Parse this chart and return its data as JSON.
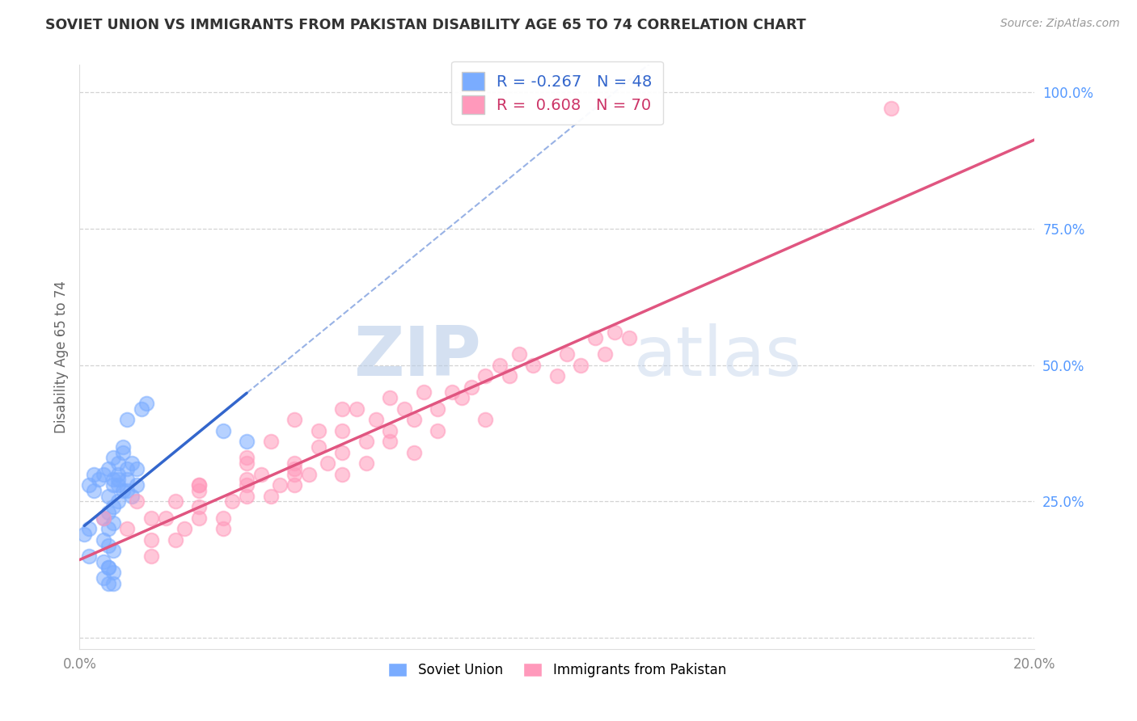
{
  "title": "SOVIET UNION VS IMMIGRANTS FROM PAKISTAN DISABILITY AGE 65 TO 74 CORRELATION CHART",
  "source": "Source: ZipAtlas.com",
  "ylabel": "Disability Age 65 to 74",
  "xlim": [
    0.0,
    0.2
  ],
  "ylim": [
    -0.02,
    1.05
  ],
  "yticks": [
    0.0,
    0.25,
    0.5,
    0.75,
    1.0
  ],
  "yticklabels": [
    "",
    "25.0%",
    "50.0%",
    "75.0%",
    "100.0%"
  ],
  "soviet_color": "#7aacff",
  "pakistan_color": "#ff99bb",
  "soviet_line_color": "#3366cc",
  "pakistan_line_color": "#e05580",
  "soviet_R": -0.267,
  "soviet_N": 48,
  "pakistan_R": 0.608,
  "pakistan_N": 70,
  "grid_color": "#c8c8c8",
  "background_color": "#ffffff",
  "axis_label_color": "#5599ff",
  "soviet_x": [
    0.005,
    0.007,
    0.008,
    0.006,
    0.01,
    0.012,
    0.009,
    0.011,
    0.008,
    0.01,
    0.006,
    0.008,
    0.007,
    0.003,
    0.004,
    0.002,
    0.003,
    0.007,
    0.009,
    0.011,
    0.01,
    0.008,
    0.007,
    0.006,
    0.005,
    0.007,
    0.002,
    0.006,
    0.001,
    0.005,
    0.006,
    0.007,
    0.002,
    0.005,
    0.006,
    0.007,
    0.005,
    0.006,
    0.012,
    0.008,
    0.009,
    0.01,
    0.013,
    0.014,
    0.006,
    0.007,
    0.03,
    0.035
  ],
  "soviet_y": [
    0.3,
    0.33,
    0.32,
    0.31,
    0.29,
    0.28,
    0.27,
    0.26,
    0.28,
    0.27,
    0.26,
    0.3,
    0.29,
    0.3,
    0.29,
    0.28,
    0.27,
    0.28,
    0.34,
    0.32,
    0.31,
    0.25,
    0.24,
    0.23,
    0.22,
    0.21,
    0.2,
    0.2,
    0.19,
    0.18,
    0.17,
    0.16,
    0.15,
    0.14,
    0.13,
    0.12,
    0.11,
    0.1,
    0.31,
    0.29,
    0.35,
    0.4,
    0.42,
    0.43,
    0.13,
    0.1,
    0.38,
    0.36
  ],
  "pakistan_x": [
    0.005,
    0.01,
    0.012,
    0.015,
    0.018,
    0.02,
    0.022,
    0.025,
    0.025,
    0.03,
    0.032,
    0.035,
    0.038,
    0.04,
    0.042,
    0.045,
    0.048,
    0.05,
    0.052,
    0.055,
    0.058,
    0.06,
    0.062,
    0.065,
    0.068,
    0.07,
    0.072,
    0.075,
    0.078,
    0.08,
    0.082,
    0.085,
    0.088,
    0.09,
    0.092,
    0.095,
    0.1,
    0.102,
    0.105,
    0.108,
    0.11,
    0.112,
    0.115,
    0.025,
    0.035,
    0.045,
    0.055,
    0.065,
    0.075,
    0.085,
    0.015,
    0.02,
    0.03,
    0.015,
    0.025,
    0.035,
    0.045,
    0.055,
    0.06,
    0.07,
    0.025,
    0.035,
    0.045,
    0.035,
    0.04,
    0.05,
    0.045,
    0.055,
    0.065,
    0.17
  ],
  "pakistan_y": [
    0.22,
    0.2,
    0.25,
    0.18,
    0.22,
    0.25,
    0.2,
    0.22,
    0.28,
    0.22,
    0.25,
    0.28,
    0.3,
    0.26,
    0.28,
    0.32,
    0.3,
    0.35,
    0.32,
    0.38,
    0.42,
    0.36,
    0.4,
    0.38,
    0.42,
    0.4,
    0.45,
    0.42,
    0.45,
    0.44,
    0.46,
    0.48,
    0.5,
    0.48,
    0.52,
    0.5,
    0.48,
    0.52,
    0.5,
    0.55,
    0.52,
    0.56,
    0.55,
    0.28,
    0.32,
    0.3,
    0.34,
    0.36,
    0.38,
    0.4,
    0.15,
    0.18,
    0.2,
    0.22,
    0.24,
    0.26,
    0.28,
    0.3,
    0.32,
    0.34,
    0.27,
    0.29,
    0.31,
    0.33,
    0.36,
    0.38,
    0.4,
    0.42,
    0.44,
    0.97
  ]
}
